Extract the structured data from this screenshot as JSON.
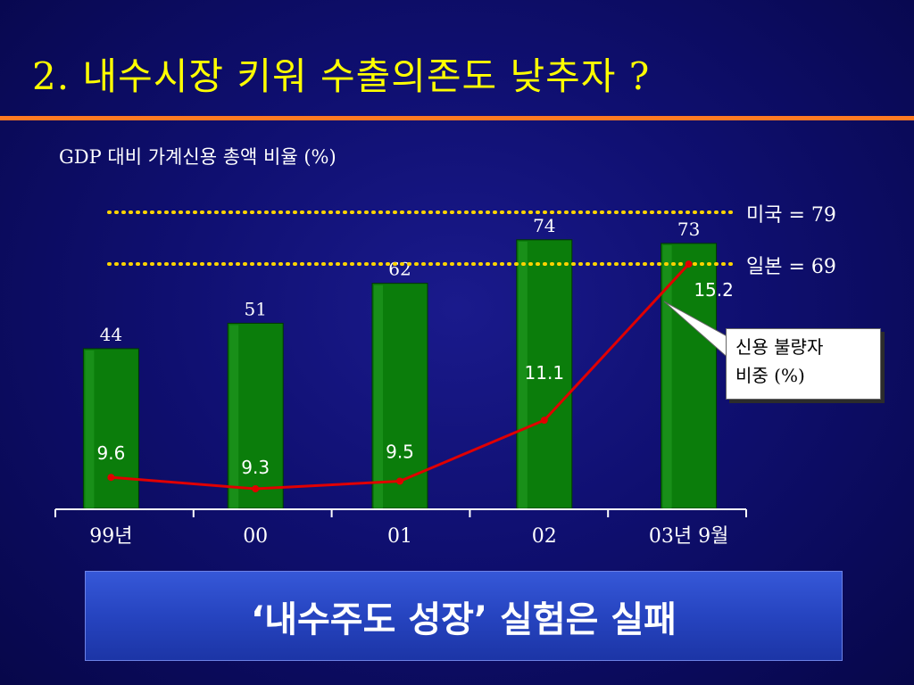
{
  "slide": {
    "title": "2. 내수시장 키워 수출의존도 낮추자 ?",
    "caption": "GDP 대비 가계신용 총액 비율 (%)"
  },
  "reference_lines": [
    {
      "label": "미국 = 79",
      "value": 79
    },
    {
      "label": "일본 = 69",
      "value": 69
    }
  ],
  "callout": {
    "line1": "신용 불량자",
    "line2": "비중 (%)"
  },
  "conclusion": "‘내수주도 성장’ 실험은 실패",
  "colors": {
    "bar": "#0b7d0b",
    "line": "#e00000",
    "reference": "#ffd400",
    "title": "#ffff00",
    "rule": "#ff7a22"
  },
  "chart_data": {
    "type": "bar",
    "categories": [
      "99년",
      "00",
      "01",
      "02",
      "03년 9월"
    ],
    "series": [
      {
        "type": "bar",
        "values": [
          44,
          51,
          62,
          74,
          73
        ],
        "labels": [
          "44",
          "51",
          "62",
          "74",
          "73"
        ]
      },
      {
        "name": "신용 불량자 비중 (%)",
        "type": "line",
        "values": [
          9.6,
          9.3,
          9.5,
          11.1,
          15.2
        ],
        "labels": [
          "9.6",
          "9.3",
          "9.5",
          "11.1",
          "15.2"
        ]
      }
    ],
    "reference_lines": [
      {
        "label": "미국 = 79",
        "value": 79
      },
      {
        "label": "일본 = 69",
        "value": 69
      }
    ],
    "title": "GDP 대비 가계신용 총액 비율 (%)",
    "xlabel": "",
    "ylabel": "",
    "grid": false
  }
}
